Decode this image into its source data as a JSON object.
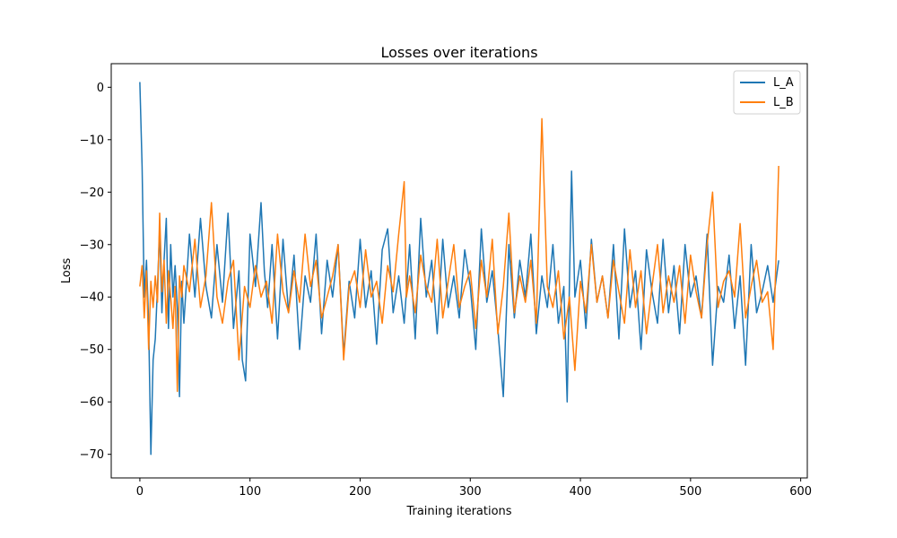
{
  "chart_data": {
    "type": "line",
    "title": "Losses over iterations",
    "xlabel": "Training iterations",
    "ylabel": "Loss",
    "xlim": [
      -26,
      606
    ],
    "ylim": [
      -74.5,
      4.5
    ],
    "xticks": [
      0,
      100,
      200,
      300,
      400,
      500,
      600
    ],
    "yticks": [
      0,
      -10,
      -20,
      -30,
      -40,
      -50,
      -60,
      -70
    ],
    "grid": false,
    "legend_position": "top-right",
    "colors": {
      "L_A": "#1f77b4",
      "L_B": "#ff7f0e"
    },
    "series": [
      {
        "name": "L_A",
        "x": [
          0,
          2,
          4,
          6,
          8,
          10,
          12,
          14,
          16,
          18,
          20,
          22,
          24,
          26,
          28,
          30,
          32,
          34,
          36,
          38,
          40,
          45,
          50,
          55,
          60,
          65,
          70,
          75,
          80,
          85,
          90,
          93,
          96,
          100,
          105,
          110,
          113,
          116,
          120,
          125,
          130,
          135,
          140,
          145,
          150,
          155,
          160,
          165,
          170,
          175,
          180,
          185,
          190,
          195,
          200,
          205,
          210,
          215,
          220,
          225,
          230,
          235,
          240,
          245,
          250,
          255,
          260,
          265,
          270,
          275,
          280,
          285,
          290,
          295,
          300,
          305,
          310,
          315,
          320,
          325,
          330,
          335,
          340,
          345,
          350,
          355,
          360,
          365,
          370,
          375,
          380,
          385,
          388,
          392,
          395,
          400,
          405,
          410,
          415,
          420,
          425,
          430,
          435,
          440,
          445,
          450,
          455,
          460,
          465,
          470,
          475,
          480,
          485,
          490,
          495,
          500,
          505,
          510,
          515,
          520,
          525,
          530,
          535,
          540,
          545,
          550,
          555,
          560,
          565,
          570,
          575,
          580
        ],
        "values": [
          1,
          -15,
          -40,
          -33,
          -45,
          -70,
          -52,
          -48,
          -38,
          -27,
          -43,
          -33,
          -25,
          -46,
          -30,
          -40,
          -34,
          -42,
          -59,
          -37,
          -45,
          -28,
          -40,
          -25,
          -38,
          -44,
          -30,
          -41,
          -24,
          -46,
          -35,
          -52,
          -56,
          -28,
          -38,
          -22,
          -35,
          -42,
          -30,
          -48,
          -29,
          -43,
          -32,
          -50,
          -36,
          -41,
          -28,
          -47,
          -33,
          -40,
          -30,
          -51,
          -37,
          -44,
          -29,
          -42,
          -35,
          -49,
          -31,
          -27,
          -43,
          -36,
          -45,
          -30,
          -48,
          -25,
          -40,
          -33,
          -47,
          -29,
          -42,
          -36,
          -44,
          -31,
          -38,
          -50,
          -27,
          -41,
          -35,
          -46,
          -59,
          -30,
          -44,
          -33,
          -40,
          -28,
          -47,
          -36,
          -42,
          -30,
          -45,
          -38,
          -60,
          -16,
          -40,
          -33,
          -46,
          -29,
          -41,
          -36,
          -44,
          -30,
          -48,
          -27,
          -42,
          -35,
          -50,
          -31,
          -39,
          -45,
          -29,
          -43,
          -34,
          -47,
          -30,
          -40,
          -36,
          -44,
          -28,
          -53,
          -38,
          -41,
          -32,
          -46,
          -36,
          -53,
          -30,
          -43,
          -39,
          -34,
          -41,
          -33
        ]
      },
      {
        "name": "L_B",
        "x": [
          0,
          2,
          4,
          6,
          8,
          10,
          12,
          14,
          16,
          18,
          20,
          22,
          24,
          26,
          28,
          30,
          32,
          34,
          36,
          38,
          40,
          45,
          50,
          55,
          60,
          65,
          70,
          75,
          80,
          85,
          90,
          95,
          100,
          105,
          110,
          115,
          120,
          125,
          130,
          135,
          140,
          145,
          150,
          155,
          160,
          165,
          170,
          175,
          180,
          185,
          190,
          195,
          200,
          205,
          210,
          215,
          220,
          225,
          230,
          235,
          240,
          242,
          245,
          250,
          255,
          260,
          265,
          270,
          275,
          280,
          285,
          290,
          295,
          300,
          305,
          310,
          315,
          320,
          325,
          330,
          335,
          340,
          345,
          350,
          355,
          360,
          365,
          370,
          375,
          380,
          385,
          390,
          395,
          400,
          405,
          410,
          415,
          420,
          425,
          430,
          435,
          440,
          445,
          450,
          455,
          460,
          465,
          470,
          475,
          480,
          485,
          490,
          495,
          500,
          505,
          510,
          515,
          520,
          525,
          530,
          535,
          540,
          545,
          550,
          555,
          560,
          565,
          570,
          575,
          578,
          580
        ],
        "values": [
          -38,
          -34,
          -44,
          -35,
          -50,
          -37,
          -42,
          -36,
          -41,
          -24,
          -39,
          -33,
          -45,
          -35,
          -40,
          -46,
          -38,
          -58,
          -36,
          -40,
          -34,
          -39,
          -29,
          -42,
          -36,
          -22,
          -40,
          -45,
          -37,
          -33,
          -52,
          -38,
          -42,
          -34,
          -40,
          -37,
          -45,
          -28,
          -39,
          -43,
          -35,
          -41,
          -28,
          -38,
          -33,
          -44,
          -40,
          -36,
          -30,
          -52,
          -38,
          -35,
          -42,
          -31,
          -40,
          -37,
          -45,
          -34,
          -39,
          -28,
          -18,
          -40,
          -36,
          -43,
          -32,
          -38,
          -41,
          -29,
          -44,
          -37,
          -30,
          -42,
          -38,
          -35,
          -46,
          -33,
          -40,
          -29,
          -47,
          -38,
          -24,
          -43,
          -36,
          -41,
          -33,
          -45,
          -6,
          -38,
          -42,
          -35,
          -48,
          -40,
          -54,
          -37,
          -43,
          -30,
          -41,
          -36,
          -44,
          -33,
          -39,
          -45,
          -31,
          -42,
          -35,
          -47,
          -38,
          -30,
          -43,
          -36,
          -41,
          -34,
          -45,
          -32,
          -39,
          -44,
          -30,
          -20,
          -42,
          -37,
          -35,
          -40,
          -26,
          -44,
          -38,
          -33,
          -41,
          -39,
          -50,
          -30,
          -15
        ]
      }
    ]
  }
}
